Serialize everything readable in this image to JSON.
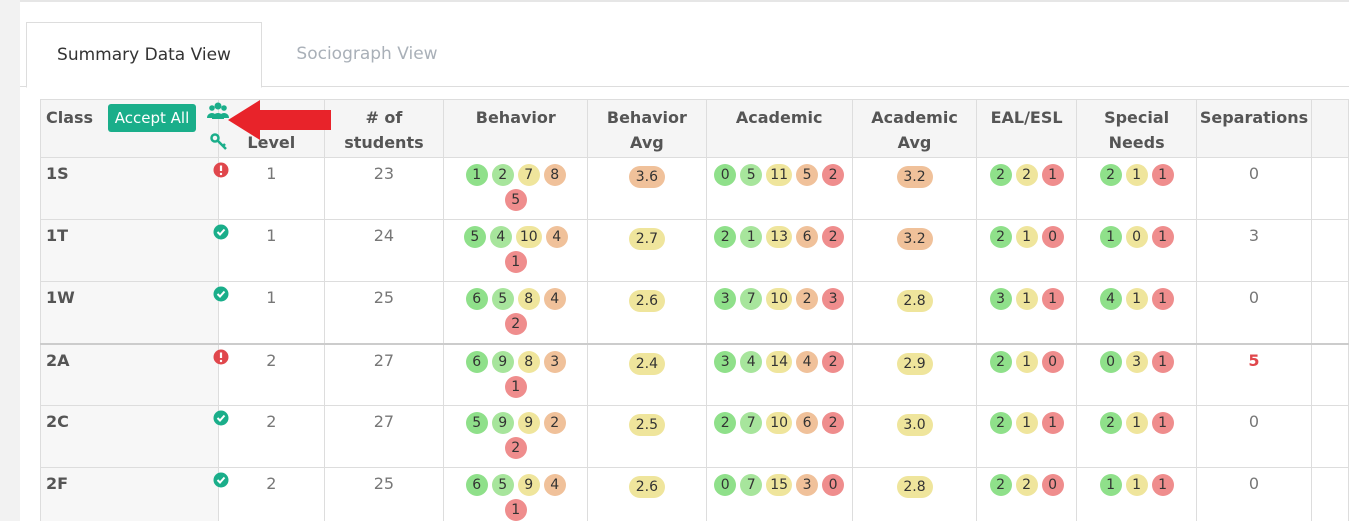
{
  "tabs": [
    "Summary Data View",
    "Sociograph View"
  ],
  "active_tab": 0,
  "accept_all": "Accept All",
  "headers": {
    "class": "Class",
    "level": "Level",
    "students": "# of students",
    "behavior": "Behavior",
    "behavior_avg": "Behavior Avg",
    "academic": "Academic",
    "academic_avg": "Academic Avg",
    "eal": "EAL/ESL",
    "special_needs": "Special Needs",
    "separations": "Separations"
  },
  "palette": {
    "five": [
      "#8fe08a",
      "#a7e59c",
      "#efe59c",
      "#f0c19a",
      "#ef8d8d"
    ],
    "three": [
      "#8fe08a",
      "#efe59c",
      "#ef8d8d"
    ],
    "status": {
      "alert": "#e0474c",
      "ok": "#1aae8a"
    }
  },
  "rows": [
    {
      "class": "1S",
      "status": "alert",
      "level": 1,
      "students": 23,
      "behavior": [
        1,
        2,
        7,
        8,
        5
      ],
      "behavior_avg": {
        "value": "3.6",
        "color": "#f0c19a"
      },
      "academic": [
        0,
        5,
        11,
        5,
        2
      ],
      "academic_avg": {
        "value": "3.2",
        "color": "#f0c19a"
      },
      "eal": [
        2,
        2,
        1
      ],
      "special_needs": [
        2,
        1,
        1
      ],
      "separations": 0
    },
    {
      "class": "1T",
      "status": "ok",
      "level": 1,
      "students": 24,
      "behavior": [
        5,
        4,
        10,
        4,
        1
      ],
      "behavior_avg": {
        "value": "2.7",
        "color": "#efe59c"
      },
      "academic": [
        2,
        1,
        13,
        6,
        2
      ],
      "academic_avg": {
        "value": "3.2",
        "color": "#f0c19a"
      },
      "eal": [
        2,
        1,
        0
      ],
      "special_needs": [
        1,
        0,
        1
      ],
      "separations": 3
    },
    {
      "class": "1W",
      "status": "ok",
      "level": 1,
      "students": 25,
      "behavior": [
        6,
        5,
        8,
        4,
        2
      ],
      "behavior_avg": {
        "value": "2.6",
        "color": "#efe59c"
      },
      "academic": [
        3,
        7,
        10,
        2,
        3
      ],
      "academic_avg": {
        "value": "2.8",
        "color": "#efe59c"
      },
      "eal": [
        3,
        1,
        1
      ],
      "special_needs": [
        4,
        1,
        1
      ],
      "separations": 0
    },
    {
      "class": "2A",
      "status": "alert",
      "level": 2,
      "students": 27,
      "behavior": [
        6,
        9,
        8,
        3,
        1
      ],
      "behavior_avg": {
        "value": "2.4",
        "color": "#efe59c"
      },
      "academic": [
        3,
        4,
        14,
        4,
        2
      ],
      "academic_avg": {
        "value": "2.9",
        "color": "#efe59c"
      },
      "eal": [
        2,
        1,
        0
      ],
      "special_needs": [
        0,
        3,
        1
      ],
      "separations": 5
    },
    {
      "class": "2C",
      "status": "ok",
      "level": 2,
      "students": 27,
      "behavior": [
        5,
        9,
        9,
        2,
        2
      ],
      "behavior_avg": {
        "value": "2.5",
        "color": "#efe59c"
      },
      "academic": [
        2,
        7,
        10,
        6,
        2
      ],
      "academic_avg": {
        "value": "3.0",
        "color": "#efe59c"
      },
      "eal": [
        2,
        1,
        1
      ],
      "special_needs": [
        2,
        1,
        1
      ],
      "separations": 0
    },
    {
      "class": "2F",
      "status": "ok",
      "level": 2,
      "students": 25,
      "behavior": [
        6,
        5,
        9,
        4,
        1
      ],
      "behavior_avg": {
        "value": "2.6",
        "color": "#efe59c"
      },
      "academic": [
        0,
        7,
        15,
        3,
        0
      ],
      "academic_avg": {
        "value": "2.8",
        "color": "#efe59c"
      },
      "eal": [
        2,
        2,
        0
      ],
      "special_needs": [
        1,
        1,
        1
      ],
      "separations": 0
    }
  ]
}
